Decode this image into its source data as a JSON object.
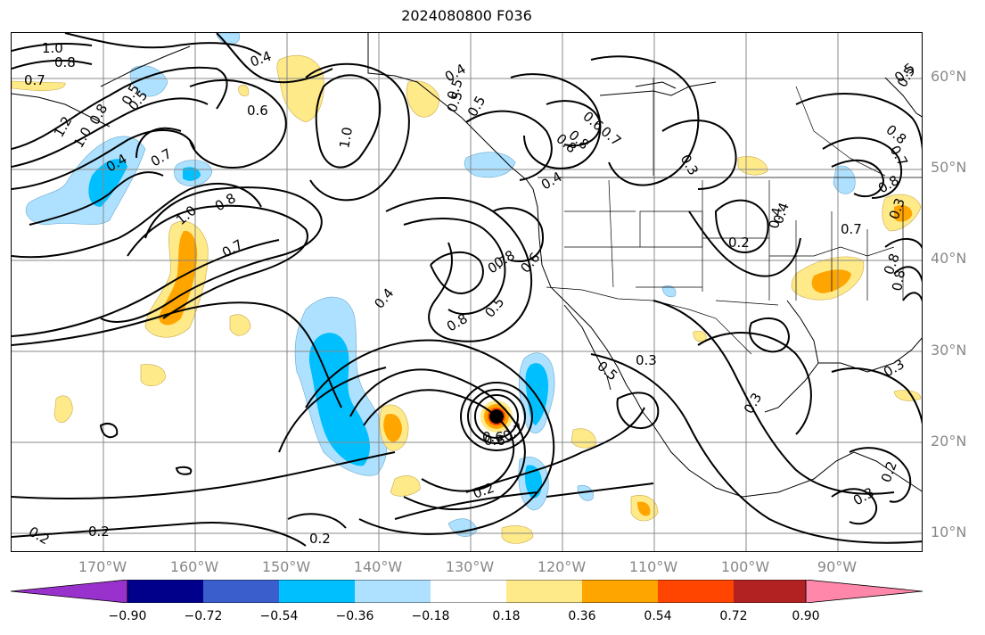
{
  "title": "2024080800 F036",
  "lat_labels": [
    "60°N",
    "50°N",
    "40°N",
    "30°N",
    "20°N",
    "10°N"
  ],
  "lon_labels": [
    "170°W",
    "160°W",
    "150°W",
    "140°W",
    "130°W",
    "120°W",
    "110°W",
    "100°W",
    "90°W"
  ],
  "colorbar": {
    "ticks": [
      "−0.90",
      "−0.72",
      "−0.54",
      "−0.36",
      "−0.18",
      "0.18",
      "0.36",
      "0.54",
      "0.72",
      "0.90"
    ],
    "colors": [
      "#9932CC",
      "#00008B",
      "#3A5FCD",
      "#00BFFF",
      "#ADE1FF",
      "#FFFFFF",
      "#FFEA8A",
      "#FFA500",
      "#FF4500",
      "#B22222",
      "#FF88AA"
    ]
  },
  "contour_labels": [
    "1.0",
    "0.8",
    "0.7",
    "0.4",
    "0.6",
    "0.5",
    "1.2",
    "1.0",
    "0.8",
    "0.5",
    "0.4",
    "0.7",
    "1.0",
    "0.4",
    "0.8",
    "0.7",
    "0.6",
    "0.8",
    "0.5",
    "0.3",
    "0.4",
    "0.2",
    "1.0",
    "0.8",
    "0.5",
    "0.7",
    "0.6",
    "0.4",
    "0.8",
    "0.8",
    "0.7",
    "0.5",
    "0.4",
    "0.8",
    "0.5",
    "0.3",
    "0.3",
    "0.6",
    "0.2",
    "0.2",
    "0.2",
    "0.2",
    "0.3",
    "0.3",
    "0.2",
    "0.8",
    "0.7",
    "0.4",
    "0.3",
    "0.5",
    "0.6",
    "0.7",
    "0.8",
    "0.5",
    "0.8",
    "0.7",
    "0.5"
  ]
}
